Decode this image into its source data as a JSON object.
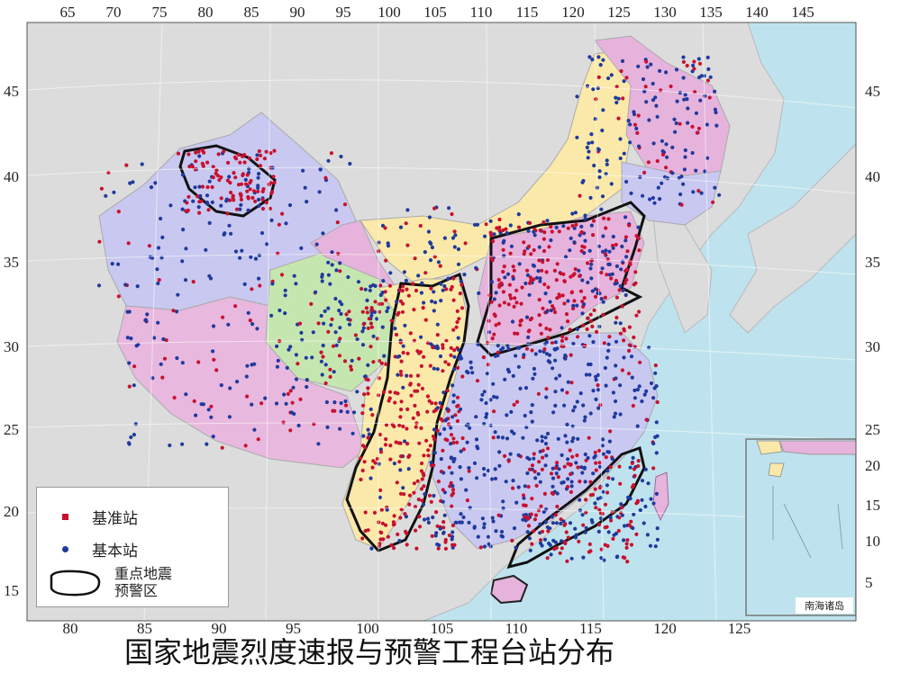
{
  "top_ticks": [
    "65",
    "70",
    "75",
    "80",
    "85",
    "90",
    "95",
    "100",
    "105",
    "110",
    "115",
    "120",
    "125",
    "130",
    "135",
    "140",
    "145"
  ],
  "bottom_ticks": [
    "80",
    "85",
    "90",
    "95",
    "100",
    "105",
    "110",
    "115",
    "120",
    "125"
  ],
  "left_ticks": [
    "45",
    "40",
    "35",
    "30",
    "25",
    "20",
    "15"
  ],
  "right_ticks": [
    "45",
    "40",
    "35",
    "30",
    "25",
    "20",
    "15",
    "10",
    "5"
  ],
  "legend": {
    "items": [
      {
        "label": "基准站",
        "color": "#c8102e",
        "shape": "square"
      },
      {
        "label": "基本站",
        "color": "#1f3a9e",
        "shape": "circle"
      }
    ],
    "zone_label_line1": "重点地震",
    "zone_label_line2": "预警区"
  },
  "inset_label": "南海诸岛",
  "caption": "国家地震烈度速报与预警工程台站分布",
  "colors": {
    "sea": "#bfe3ee",
    "land": "#d9d9d9",
    "lavender": "#c9c8f0",
    "pink": "#e6b3dc",
    "yellow": "#fbe9a9",
    "green": "#c6e6b0",
    "station_red": "#c8102e",
    "station_blue": "#1f3a9e"
  }
}
